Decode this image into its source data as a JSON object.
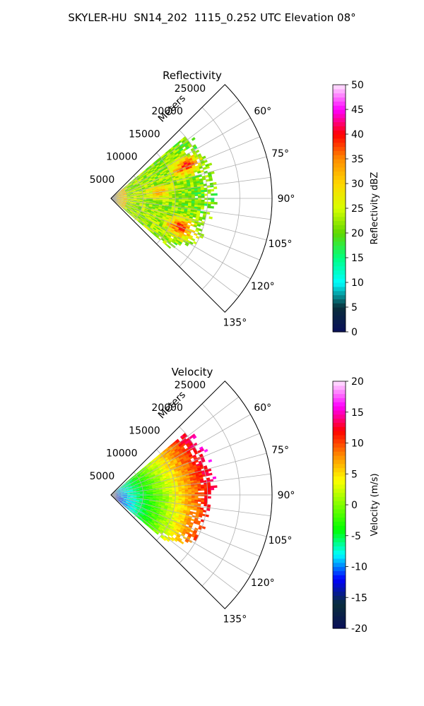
{
  "figure_title": "SKYLER-HU  SN14_202  1115_0.252 UTC Elevation 08°",
  "chart_data": [
    {
      "type": "heatmap",
      "title": "Reflectivity",
      "radial_label": "Meters",
      "range_ticks": [
        "5000",
        "10000",
        "15000",
        "20000",
        "25000"
      ],
      "range_tick_values": [
        5000,
        10000,
        15000,
        20000,
        25000
      ],
      "azimuth_ticks": [
        "60°",
        "75°",
        "90°",
        "105°",
        "120°",
        "135°"
      ],
      "azimuth_tick_values": [
        60,
        75,
        90,
        105,
        120,
        135
      ],
      "azimuth_range": [
        45,
        135
      ],
      "range_limit": 25000,
      "grid": true,
      "colorbar": {
        "label": "Reflectivity dBZ",
        "ticks": [
          "0",
          "5",
          "10",
          "15",
          "20",
          "25",
          "30",
          "35",
          "40",
          "45",
          "50"
        ],
        "range": [
          0,
          50
        ],
        "stops": [
          "#0a0f5a",
          "#0a2f3a",
          "#00ffff",
          "#00ff80",
          "#5fd700",
          "#d7ff00",
          "#ffd700",
          "#ff8c00",
          "#ff0000",
          "#ff00ff",
          "#ffe6ff"
        ]
      },
      "echo": {
        "max_range": 16500,
        "azimuth_extent": [
          50,
          130
        ],
        "dominant_values": "18-30 dBZ with cores of 35-42 dBZ near 12000 m at ~70° and ~110°"
      }
    },
    {
      "type": "heatmap",
      "title": "Velocity",
      "radial_label": "Meters",
      "range_ticks": [
        "5000",
        "10000",
        "15000",
        "20000",
        "25000"
      ],
      "range_tick_values": [
        5000,
        10000,
        15000,
        20000,
        25000
      ],
      "azimuth_ticks": [
        "60°",
        "75°",
        "90°",
        "105°",
        "120°",
        "135°"
      ],
      "azimuth_tick_values": [
        60,
        75,
        90,
        105,
        120,
        135
      ],
      "azimuth_range": [
        45,
        135
      ],
      "range_limit": 25000,
      "grid": true,
      "colorbar": {
        "label": "Velocity (m/s)",
        "ticks": [
          "-20",
          "-15",
          "-10",
          "-5",
          "0",
          "5",
          "10",
          "15",
          "20"
        ],
        "range": [
          -20,
          20
        ],
        "stops": [
          "#0a0f5a",
          "#0a2f3a",
          "#0000ff",
          "#00ffff",
          "#00ff00",
          "#7fff00",
          "#ffff00",
          "#ff8c00",
          "#ff0000",
          "#ff00ff",
          "#ffe6ff"
        ]
      },
      "echo": {
        "max_range": 16500,
        "azimuth_extent": [
          50,
          130
        ],
        "dominant_values": "-12 m/s near radar increasing to +15 m/s at far range"
      }
    }
  ]
}
